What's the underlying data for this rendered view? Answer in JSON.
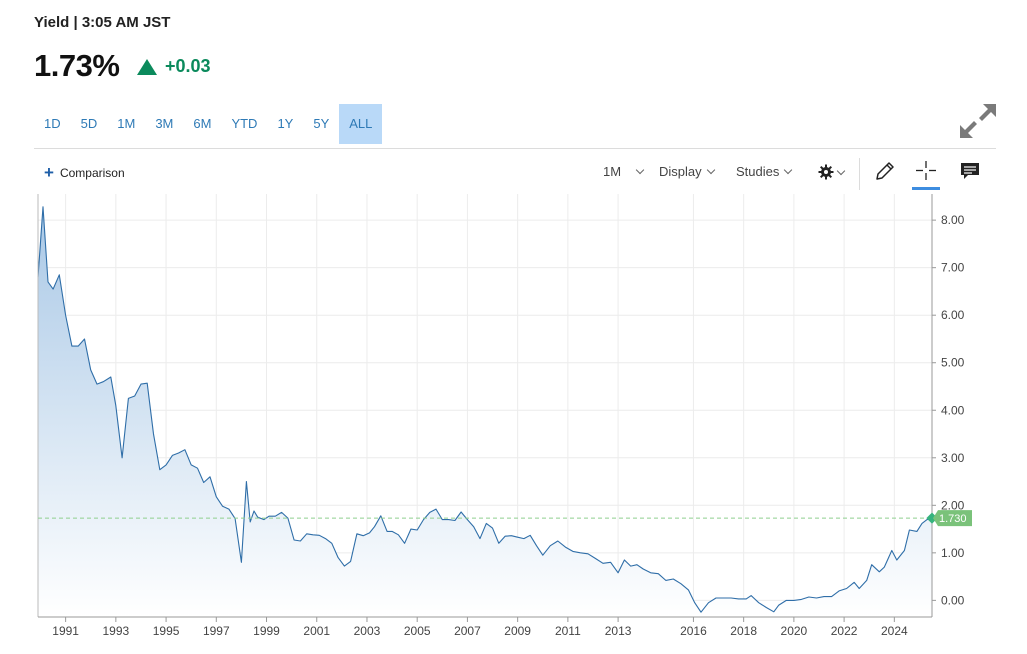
{
  "header": {
    "label": "Yield | 3:05 AM JST",
    "price": "1.73%",
    "change": "+0.03",
    "change_color": "#0b8a5c"
  },
  "ranges": {
    "items": [
      "1D",
      "5D",
      "1M",
      "3M",
      "6M",
      "YTD",
      "1Y",
      "5Y",
      "ALL"
    ],
    "active": "ALL"
  },
  "toolbar": {
    "comparison_label": "Comparison",
    "interval_label": "1M",
    "display_label": "Display",
    "studies_label": "Studies"
  },
  "icons": {
    "expand": "expand-icon",
    "plus": "plus-icon",
    "settings": "gear-icon",
    "draw": "pencil-icon",
    "crosshair": "crosshair-icon",
    "comment": "comment-icon"
  },
  "colors": {
    "line": "#2f6ea8",
    "fill_top": "#a9c8e6",
    "fill_bottom": "#ffffff",
    "last_marker": "#36b37e",
    "last_badge": "#7ac27a",
    "reference_line": "#8fcf8f",
    "accent": "#3d8de0"
  },
  "chart_data": {
    "type": "area",
    "title": "",
    "xlabel": "",
    "ylabel": "",
    "x_ticks": [
      "1991",
      "1993",
      "1995",
      "1997",
      "1999",
      "2001",
      "2003",
      "2005",
      "2007",
      "2009",
      "2011",
      "2013",
      "2016",
      "2018",
      "2020",
      "2022",
      "2024"
    ],
    "y_ticks": [
      "0.00",
      "1.00",
      "2.00",
      "3.00",
      "4.00",
      "5.00",
      "6.00",
      "7.00",
      "8.00"
    ],
    "ylim": [
      -0.35,
      8.55
    ],
    "xlim": [
      1989.9,
      2025.5
    ],
    "y_axis_position": "right",
    "grid": true,
    "last_value": 1.73,
    "last_value_label": "1.730",
    "series": [
      {
        "x": [
          1989.9,
          1990.1,
          1990.3,
          1990.5,
          1990.75,
          1991.0,
          1991.25,
          1991.5,
          1991.75,
          1992.0,
          1992.25,
          1992.5,
          1992.8,
          1993.0,
          1993.25,
          1993.5,
          1993.75,
          1994.0,
          1994.25,
          1994.5,
          1994.75,
          1995.0,
          1995.25,
          1995.5,
          1995.75,
          1996.0,
          1996.25,
          1996.5,
          1996.75,
          1997.0,
          1997.25,
          1997.5,
          1997.75,
          1998.0,
          1998.2,
          1998.35,
          1998.5,
          1998.65,
          1998.9,
          1999.1,
          1999.35,
          1999.6,
          1999.85,
          2000.1,
          2000.35,
          2000.6,
          2000.85,
          2001.1,
          2001.35,
          2001.6,
          2001.85,
          2002.1,
          2002.35,
          2002.6,
          2002.85,
          2003.1,
          2003.3,
          2003.55,
          2003.8,
          2004.0,
          2004.25,
          2004.5,
          2004.75,
          2005.0,
          2005.25,
          2005.5,
          2005.75,
          2006.0,
          2006.25,
          2006.5,
          2006.75,
          2007.0,
          2007.25,
          2007.5,
          2007.75,
          2008.0,
          2008.25,
          2008.5,
          2008.75,
          2009.0,
          2009.25,
          2009.5,
          2009.75,
          2010.0,
          2010.3,
          2010.6,
          2010.9,
          2011.2,
          2011.5,
          2011.8,
          2012.1,
          2012.4,
          2012.7,
          2013.0,
          2013.25,
          2013.5,
          2013.75,
          2014.0,
          2014.3,
          2014.6,
          2014.9,
          2015.2,
          2015.5,
          2015.8,
          2016.05,
          2016.3,
          2016.6,
          2016.9,
          2017.2,
          2017.5,
          2017.8,
          2018.1,
          2018.3,
          2018.6,
          2018.9,
          2019.2,
          2019.4,
          2019.7,
          2020.0,
          2020.3,
          2020.6,
          2020.9,
          2021.2,
          2021.5,
          2021.8,
          2022.1,
          2022.4,
          2022.6,
          2022.9,
          2023.1,
          2023.4,
          2023.6,
          2023.9,
          2024.1,
          2024.4,
          2024.6,
          2024.9,
          2025.1,
          2025.3,
          2025.5
        ],
        "y": [
          6.8,
          8.28,
          6.7,
          6.55,
          6.85,
          6.0,
          5.35,
          5.35,
          5.5,
          4.85,
          4.55,
          4.6,
          4.7,
          4.1,
          3.0,
          4.25,
          4.3,
          4.55,
          4.57,
          3.5,
          2.75,
          2.85,
          3.05,
          3.1,
          3.17,
          2.85,
          2.78,
          2.48,
          2.6,
          2.18,
          1.98,
          1.92,
          1.72,
          0.8,
          2.5,
          1.65,
          1.88,
          1.75,
          1.7,
          1.77,
          1.77,
          1.85,
          1.73,
          1.27,
          1.25,
          1.4,
          1.38,
          1.37,
          1.3,
          1.2,
          0.9,
          0.72,
          0.82,
          1.4,
          1.36,
          1.42,
          1.55,
          1.78,
          1.45,
          1.45,
          1.38,
          1.2,
          1.5,
          1.48,
          1.7,
          1.85,
          1.92,
          1.7,
          1.7,
          1.68,
          1.86,
          1.7,
          1.55,
          1.3,
          1.62,
          1.52,
          1.2,
          1.35,
          1.36,
          1.33,
          1.3,
          1.37,
          1.15,
          0.95,
          1.15,
          1.25,
          1.12,
          1.03,
          1.0,
          0.98,
          0.88,
          0.78,
          0.8,
          0.58,
          0.85,
          0.72,
          0.75,
          0.66,
          0.58,
          0.56,
          0.42,
          0.45,
          0.35,
          0.22,
          -0.05,
          -0.25,
          -0.05,
          0.05,
          0.05,
          0.05,
          0.03,
          0.03,
          0.1,
          -0.05,
          -0.15,
          -0.24,
          -0.1,
          0.0,
          0.0,
          0.02,
          0.07,
          0.05,
          0.08,
          0.08,
          0.2,
          0.25,
          0.38,
          0.25,
          0.42,
          0.75,
          0.6,
          0.7,
          1.05,
          0.85,
          1.05,
          1.48,
          1.45,
          1.62,
          1.7,
          1.73
        ]
      }
    ]
  }
}
